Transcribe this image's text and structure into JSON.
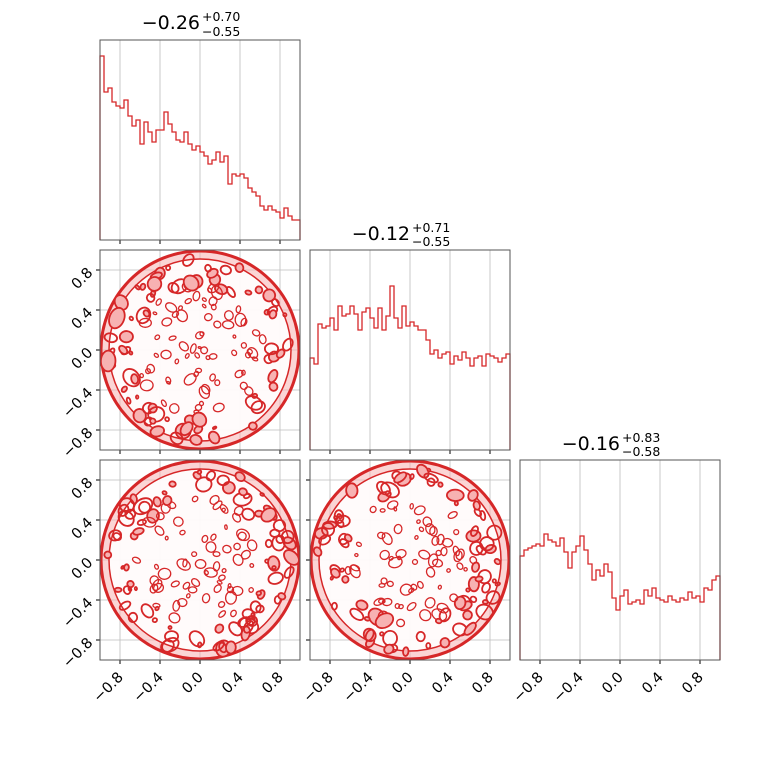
{
  "colors": {
    "line": "#d62728",
    "fill": "#f7b2b2",
    "grid": "#bdbdbd",
    "frame": "#555555"
  },
  "chart_data": {
    "type": "corner",
    "parameters": 3,
    "axis_range": [
      -1.0,
      1.0
    ],
    "x_ticks": [
      "−0.8",
      "−0.4",
      "0.0",
      "0.4",
      "0.8"
    ],
    "y_ticks": [
      "0.8",
      "0.4",
      "0.0",
      "−0.4",
      "−0.8"
    ],
    "tick_values": [
      -0.8,
      -0.4,
      0.0,
      0.4,
      0.8
    ],
    "grid": true,
    "titles": [
      {
        "median": "−0.26",
        "plus": "+0.70",
        "minus": "−0.55"
      },
      {
        "median": "−0.12",
        "plus": "+0.71",
        "minus": "−0.55"
      },
      {
        "median": "−0.16",
        "plus": "+0.83",
        "minus": "−0.58"
      }
    ],
    "histograms": [
      {
        "param": 1,
        "values": [
          0.92,
          0.74,
          0.76,
          0.69,
          0.67,
          0.66,
          0.7,
          0.62,
          0.57,
          0.6,
          0.48,
          0.59,
          0.54,
          0.49,
          0.55,
          0.55,
          0.64,
          0.58,
          0.54,
          0.5,
          0.49,
          0.54,
          0.48,
          0.45,
          0.47,
          0.44,
          0.42,
          0.38,
          0.4,
          0.44,
          0.39,
          0.42,
          0.28,
          0.33,
          0.32,
          0.33,
          0.31,
          0.26,
          0.24,
          0.22,
          0.17,
          0.15,
          0.17,
          0.15,
          0.14,
          0.11,
          0.16,
          0.12,
          0.1,
          0.1
        ]
      },
      {
        "param": 2,
        "values": [
          0.46,
          0.43,
          0.63,
          0.61,
          0.62,
          0.66,
          0.6,
          0.72,
          0.67,
          0.68,
          0.72,
          0.68,
          0.6,
          0.69,
          0.71,
          0.66,
          0.61,
          0.71,
          0.6,
          0.67,
          0.82,
          0.66,
          0.61,
          0.72,
          0.62,
          0.64,
          0.62,
          0.6,
          0.6,
          0.55,
          0.48,
          0.5,
          0.46,
          0.48,
          0.49,
          0.43,
          0.47,
          0.45,
          0.49,
          0.46,
          0.42,
          0.46,
          0.47,
          0.42,
          0.48,
          0.47,
          0.46,
          0.44,
          0.46,
          0.48
        ]
      },
      {
        "param": 3,
        "values": [
          0.52,
          0.55,
          0.56,
          0.57,
          0.58,
          0.57,
          0.63,
          0.6,
          0.59,
          0.57,
          0.61,
          0.54,
          0.46,
          0.54,
          0.57,
          0.62,
          0.55,
          0.48,
          0.4,
          0.45,
          0.42,
          0.48,
          0.44,
          0.31,
          0.25,
          0.32,
          0.35,
          0.28,
          0.29,
          0.3,
          0.28,
          0.35,
          0.32,
          0.36,
          0.31,
          0.3,
          0.29,
          0.32,
          0.3,
          0.29,
          0.31,
          0.3,
          0.34,
          0.31,
          0.32,
          0.29,
          0.36,
          0.35,
          0.4,
          0.42
        ]
      }
    ],
    "contours": [
      {
        "x_param": 1,
        "y_param": 2,
        "shape": "circle",
        "radius": 1.0
      },
      {
        "x_param": 1,
        "y_param": 3,
        "shape": "circle",
        "radius": 1.0
      },
      {
        "x_param": 2,
        "y_param": 3,
        "shape": "circle",
        "radius": 1.0
      }
    ]
  }
}
